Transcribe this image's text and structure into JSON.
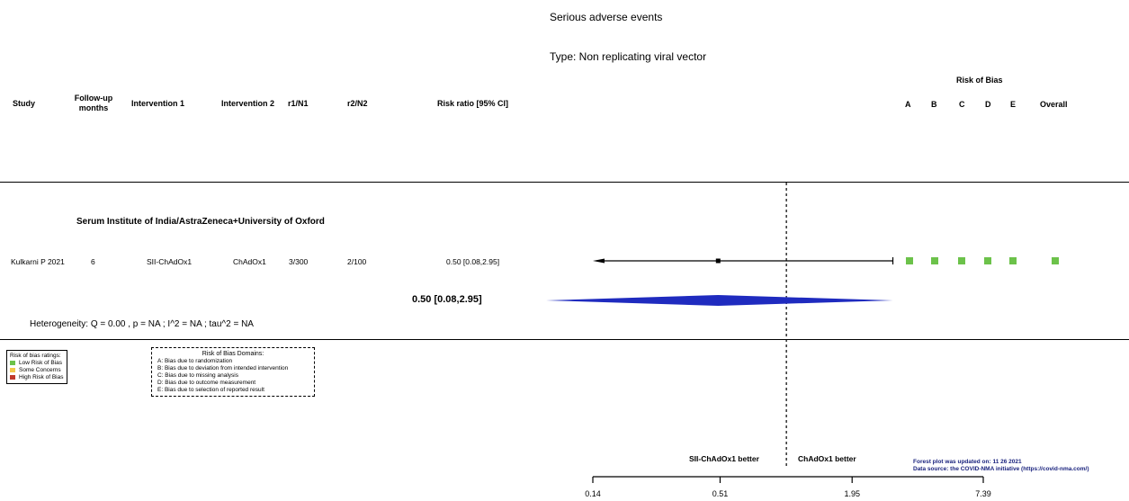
{
  "title": "Serious adverse events",
  "subtitle": "Type: Non replicating viral vector",
  "headers": {
    "study": "Study",
    "followup": "Follow-up\nmonths",
    "int1": "Intervention 1",
    "int2": "Intervention 2",
    "r1n1": "r1/N1",
    "r2n2": "r2/N2",
    "rr": "Risk ratio [95% CI]",
    "rob_title": "Risk of Bias",
    "rob_cols": [
      "A",
      "B",
      "C",
      "D",
      "E",
      "Overall"
    ]
  },
  "group_label": "Serum Institute of India/AstraZeneca+University of Oxford",
  "rows": [
    {
      "study": "Kulkarni P 2021",
      "followup": "6",
      "int1": "SII-ChAdOx1",
      "int2": "ChAdOx1",
      "r1n1": "3/300",
      "r2n2": "2/100",
      "rr_text": "0.50 [0.08,2.95]",
      "rob": [
        "low",
        "low",
        "low",
        "low",
        "low",
        "low"
      ]
    }
  ],
  "pooled_text": "0.50 [0.08,2.95]",
  "heterogeneity": "Heterogeneity: Q = 0.00 , p = NA ; I^2 = NA ; tau^2 = NA",
  "rob_legend": {
    "title": "Risk of bias ratings:",
    "items": [
      {
        "label": "Low Risk of Bias",
        "color": "#6cc24a"
      },
      {
        "label": "Some Concerns",
        "color": "#f2c94c"
      },
      {
        "label": "High Risk of Bias",
        "color": "#c0392b"
      }
    ]
  },
  "domains_legend": {
    "title": "Risk of Bias Domains:",
    "items": [
      "A: Bias due to randomization",
      "B: Bias due to deviation from intended intervention",
      "C: Bias due to missing analysis",
      "D: Bias due to outcome measurement",
      "E: Bias due to selection of reported result"
    ]
  },
  "favours_left": "SII-ChAdOx1 better",
  "favours_right": "ChAdOx1 better",
  "update_note": "Forest plot was updated on: 11 26 2021",
  "source_note": "Data source: the COVID-NMA initiative (https://covid-nma.com/)",
  "colors": {
    "low": "#6cc24a",
    "diamond": "#1f2bbf",
    "note": "#1a237e"
  },
  "chart_data": {
    "type": "forest",
    "x_scale": "log",
    "xticks": [
      "0.14",
      "0.51",
      "1.95",
      "7.39"
    ],
    "xlim": [
      0.14,
      7.39
    ],
    "reference_line": 1,
    "studies": [
      {
        "name": "Kulkarni P 2021",
        "estimate": 0.5,
        "lower": 0.08,
        "upper": 2.95,
        "lower_truncated": true
      }
    ],
    "pooled": {
      "estimate": 0.5,
      "lower": 0.08,
      "upper": 2.95
    }
  }
}
